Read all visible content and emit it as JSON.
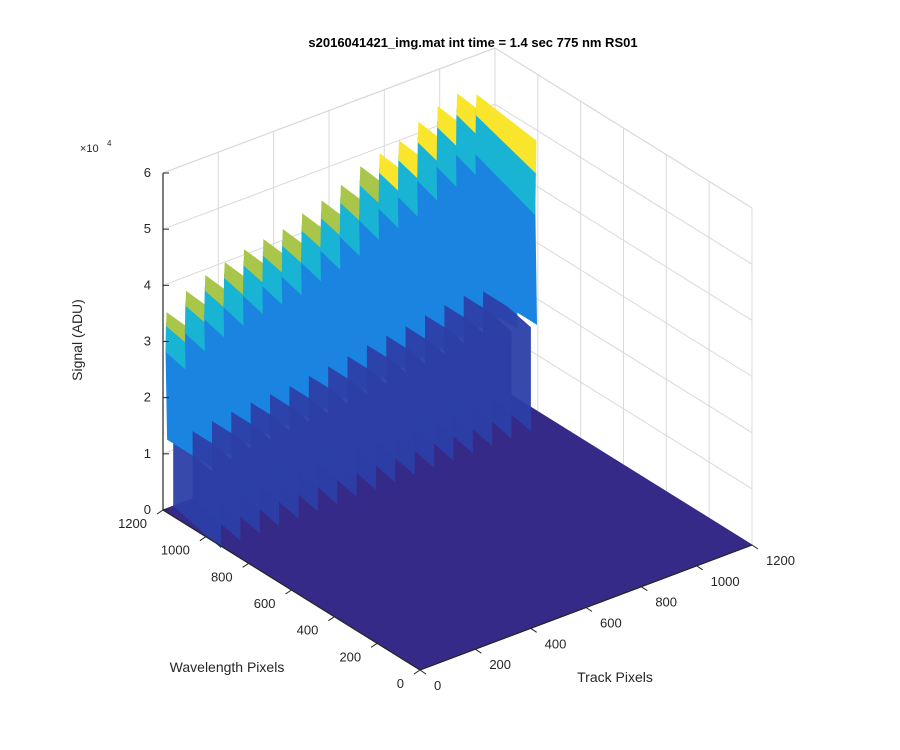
{
  "chart_data": {
    "type": "surface3d",
    "title": "s2016041421_img.mat int time = 1.4 sec  775 nm RS01",
    "xlabel": "Track Pixels",
    "ylabel": "Wavelength Pixels",
    "zlabel": "Signal (ADU)",
    "z_exponent_label": "×10",
    "z_exponent": "4",
    "xlim": [
      0,
      1200
    ],
    "ylim": [
      0,
      1200
    ],
    "zlim": [
      0,
      6
    ],
    "x_ticks": [
      "0",
      "200",
      "400",
      "600",
      "800",
      "1000",
      "1200"
    ],
    "y_ticks": [
      "0",
      "200",
      "400",
      "600",
      "800",
      "1000",
      "1200"
    ],
    "z_ticks": [
      "0",
      "1",
      "2",
      "3",
      "4",
      "5",
      "6"
    ],
    "z_scale_note": "values in units of 10^4 ADU",
    "grid": true,
    "colormap": "parula",
    "track_band": {
      "x_range": [
        0,
        1200
      ],
      "y_range": [
        920,
        1200
      ],
      "fiber_count": 17
    },
    "fiber_peaks": [
      {
        "x": 15,
        "peak": 3.5
      },
      {
        "x": 85,
        "peak": 3.75
      },
      {
        "x": 155,
        "peak": 3.9
      },
      {
        "x": 225,
        "peak": 4.0
      },
      {
        "x": 295,
        "peak": 4.1
      },
      {
        "x": 365,
        "peak": 4.15
      },
      {
        "x": 435,
        "peak": 4.2
      },
      {
        "x": 505,
        "peak": 4.35
      },
      {
        "x": 575,
        "peak": 4.45
      },
      {
        "x": 645,
        "peak": 4.6
      },
      {
        "x": 715,
        "peak": 4.8
      },
      {
        "x": 785,
        "peak": 4.9
      },
      {
        "x": 855,
        "peak": 5.0
      },
      {
        "x": 925,
        "peak": 5.2
      },
      {
        "x": 995,
        "peak": 5.35
      },
      {
        "x": 1065,
        "peak": 5.45
      },
      {
        "x": 1135,
        "peak": 5.3
      }
    ],
    "colors": {
      "floor": "#352a87",
      "low": "#2c3fa6",
      "mid": "#1a84e0",
      "upper": "#19b3d3",
      "high": "#a9c64a",
      "top": "#f9e52b"
    }
  }
}
